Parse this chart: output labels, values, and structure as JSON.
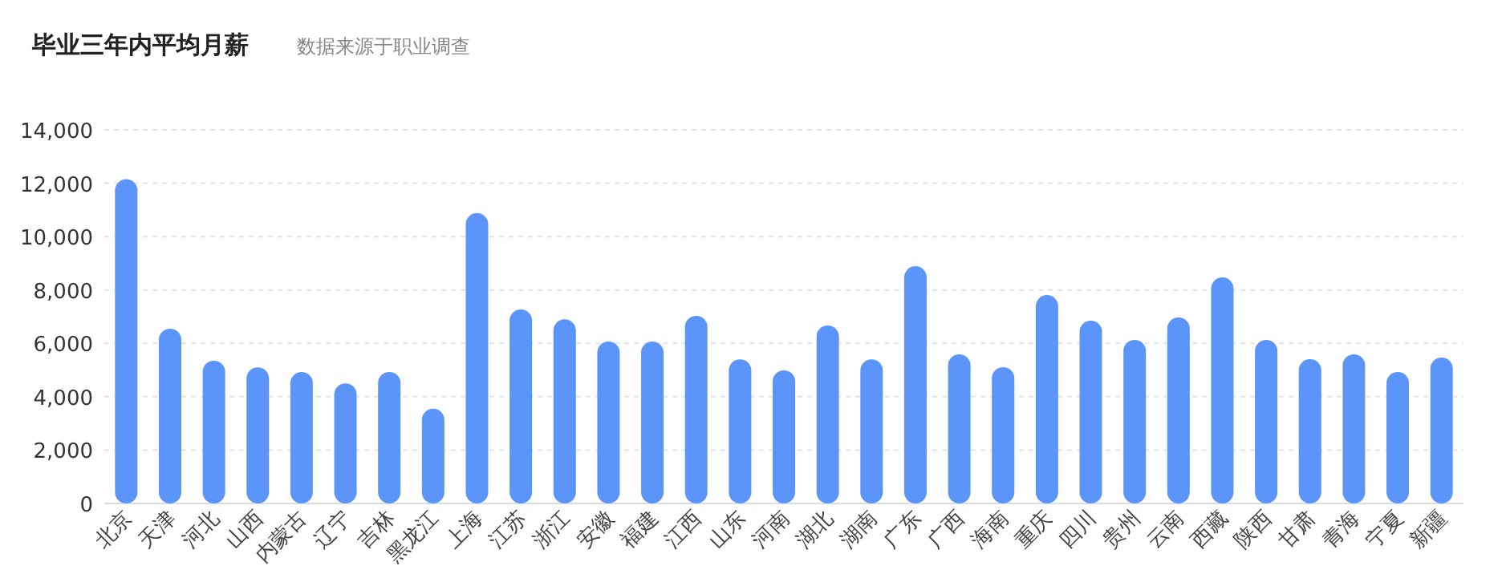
{
  "chart_data": {
    "type": "bar",
    "title": "毕业三年内平均月薪",
    "subtitle": "数据来源于职业调查",
    "categories": [
      "北京",
      "天津",
      "河北",
      "山西",
      "内蒙古",
      "辽宁",
      "吉林",
      "黑龙江",
      "上海",
      "江苏",
      "浙江",
      "安徽",
      "福建",
      "江西",
      "山东",
      "河南",
      "湖北",
      "湖南",
      "广东",
      "广西",
      "海南",
      "重庆",
      "四川",
      "贵州",
      "云南",
      "西藏",
      "陕西",
      "甘肃",
      "青海",
      "宁夏",
      "新疆"
    ],
    "values": [
      12150,
      6550,
      5350,
      5100,
      4930,
      4500,
      4930,
      3550,
      10880,
      7270,
      6900,
      6070,
      6070,
      7030,
      5400,
      4990,
      6670,
      5400,
      8890,
      5590,
      5110,
      7810,
      6850,
      6130,
      6970,
      8470,
      6130,
      5410,
      5590,
      4930,
      5470
    ],
    "color": "#5b95f9",
    "ylim": [
      0,
      14000
    ],
    "yticks": [
      0,
      {
        "value": 2000,
        "label": "2,000"
      },
      {
        "value": 4000,
        "label": "4,000"
      },
      {
        "value": 6000,
        "label": "6,000"
      },
      {
        "value": 8000,
        "label": "8,000"
      },
      {
        "value": 10000,
        "label": "10,000"
      },
      {
        "value": 12000,
        "label": "12,000"
      },
      {
        "value": 14000,
        "label": "14,000"
      }
    ],
    "grid": "y"
  }
}
